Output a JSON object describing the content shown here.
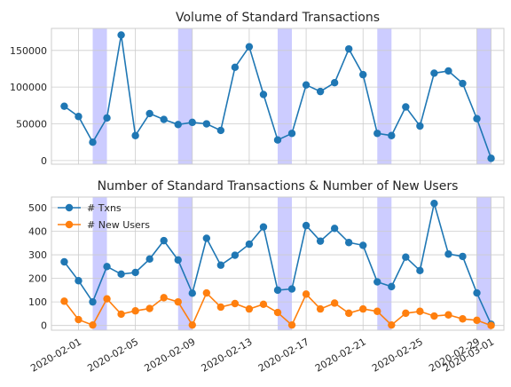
{
  "chart_data": [
    {
      "type": "line",
      "title": "Volume of Standard Transactions",
      "xlabel": "",
      "ylabel": "",
      "ylim": [
        -5000,
        180000
      ],
      "y_ticks": [
        0,
        50000,
        100000,
        150000
      ],
      "y_tick_labels": [
        "0",
        "50000",
        "100000",
        "150000"
      ],
      "grid": true,
      "legend": "none",
      "shaded_weekends": [
        [
          "2020-02-02",
          "2020-02-03"
        ],
        [
          "2020-02-08",
          "2020-02-09"
        ],
        [
          "2020-02-15",
          "2020-02-16"
        ],
        [
          "2020-02-22",
          "2020-02-23"
        ],
        [
          "2020-02-29",
          "2020-03-01"
        ]
      ],
      "x": [
        "2020-01-31",
        "2020-02-01",
        "2020-02-02",
        "2020-02-03",
        "2020-02-04",
        "2020-02-05",
        "2020-02-06",
        "2020-02-07",
        "2020-02-08",
        "2020-02-09",
        "2020-02-10",
        "2020-02-11",
        "2020-02-12",
        "2020-02-13",
        "2020-02-14",
        "2020-02-15",
        "2020-02-16",
        "2020-02-17",
        "2020-02-18",
        "2020-02-19",
        "2020-02-20",
        "2020-02-21",
        "2020-02-22",
        "2020-02-23",
        "2020-02-24",
        "2020-02-25",
        "2020-02-26",
        "2020-02-27",
        "2020-02-28",
        "2020-02-29",
        "2020-03-01"
      ],
      "series": [
        {
          "name": "",
          "color": "#1f77b4",
          "values": [
            74000,
            60000,
            25000,
            58000,
            171000,
            34000,
            64000,
            56000,
            49000,
            52000,
            50000,
            41000,
            127000,
            155000,
            90000,
            28000,
            37000,
            103000,
            94000,
            106000,
            152000,
            117000,
            37000,
            34000,
            73000,
            47000,
            119000,
            122000,
            105000,
            57000,
            3000
          ]
        }
      ]
    },
    {
      "type": "line",
      "title": "Number of Standard Transactions & Number of New Users",
      "xlabel": "",
      "ylabel": "",
      "ylim": [
        -20,
        545
      ],
      "y_ticks": [
        0,
        100,
        200,
        300,
        400,
        500
      ],
      "y_tick_labels": [
        "0",
        "100",
        "200",
        "300",
        "400",
        "500"
      ],
      "grid": true,
      "legend": "top-left",
      "shaded_weekends": [
        [
          "2020-02-02",
          "2020-02-03"
        ],
        [
          "2020-02-08",
          "2020-02-09"
        ],
        [
          "2020-02-15",
          "2020-02-16"
        ],
        [
          "2020-02-22",
          "2020-02-23"
        ],
        [
          "2020-02-29",
          "2020-03-01"
        ]
      ],
      "x": [
        "2020-01-31",
        "2020-02-01",
        "2020-02-02",
        "2020-02-03",
        "2020-02-04",
        "2020-02-05",
        "2020-02-06",
        "2020-02-07",
        "2020-02-08",
        "2020-02-09",
        "2020-02-10",
        "2020-02-11",
        "2020-02-12",
        "2020-02-13",
        "2020-02-14",
        "2020-02-15",
        "2020-02-16",
        "2020-02-17",
        "2020-02-18",
        "2020-02-19",
        "2020-02-20",
        "2020-02-21",
        "2020-02-22",
        "2020-02-23",
        "2020-02-24",
        "2020-02-25",
        "2020-02-26",
        "2020-02-27",
        "2020-02-28",
        "2020-02-29",
        "2020-03-01"
      ],
      "x_tick_labels": [
        "2020-02-01",
        "2020-02-05",
        "2020-02-09",
        "2020-02-13",
        "2020-02-17",
        "2020-02-21",
        "2020-02-25",
        "2020-02-29",
        "2020-03-01"
      ],
      "series": [
        {
          "name": "# Txns",
          "color": "#1f77b4",
          "values": [
            270,
            190,
            100,
            250,
            218,
            225,
            282,
            360,
            278,
            137,
            370,
            256,
            298,
            345,
            418,
            150,
            155,
            424,
            358,
            412,
            352,
            340,
            185,
            165,
            290,
            233,
            518,
            303,
            293,
            138,
            5
          ]
        },
        {
          "name": "# New Users",
          "color": "#ff7f0e",
          "values": [
            103,
            25,
            2,
            113,
            48,
            62,
            72,
            118,
            100,
            2,
            138,
            78,
            93,
            70,
            90,
            55,
            2,
            133,
            70,
            95,
            52,
            70,
            60,
            2,
            52,
            60,
            40,
            45,
            28,
            22,
            0
          ]
        }
      ]
    }
  ]
}
